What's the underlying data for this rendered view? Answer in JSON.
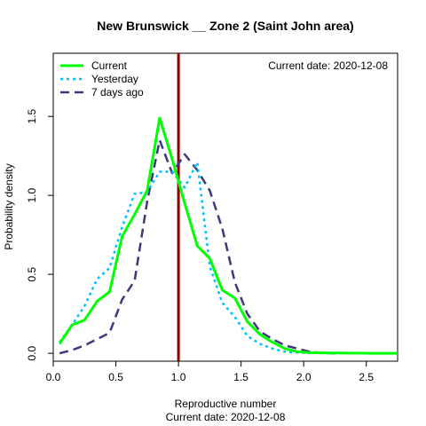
{
  "chart_data": {
    "type": "line",
    "title": "New Brunswick __ Zone 2 (Saint John area)",
    "xlabel": "Reproductive number",
    "ylabel": "Probability density",
    "subtitle": "Current date:  2020-12-08",
    "annotation": "Current date:  2020-12-08",
    "xlim": [
      0.0,
      2.75
    ],
    "ylim": [
      -0.05,
      1.9
    ],
    "x_ticks": [
      "0.0",
      "0.5",
      "1.0",
      "1.5",
      "2.0",
      "2.5"
    ],
    "y_ticks": [
      "0.0",
      "0.5",
      "1.0",
      "1.5"
    ],
    "legend_position": "top-left",
    "reference_line": {
      "x": 1.0,
      "color": "#8b0000"
    },
    "series": [
      {
        "name": "Current",
        "color": "#00ff00",
        "dash": "solid",
        "x": [
          0.05,
          0.15,
          0.25,
          0.35,
          0.45,
          0.55,
          0.65,
          0.75,
          0.85,
          0.95,
          1.05,
          1.15,
          1.25,
          1.35,
          1.45,
          1.55,
          1.65,
          1.75,
          1.85,
          1.95,
          2.05,
          2.15,
          2.25,
          2.35,
          2.45,
          2.55,
          2.65,
          2.75
        ],
        "y": [
          0.06,
          0.18,
          0.21,
          0.33,
          0.39,
          0.74,
          0.88,
          1.03,
          1.49,
          1.23,
          0.95,
          0.68,
          0.6,
          0.4,
          0.35,
          0.2,
          0.12,
          0.07,
          0.03,
          0.01,
          0.005,
          0.003,
          0.002,
          0.001,
          0.001,
          0.0,
          0.0,
          0.0
        ]
      },
      {
        "name": "Yesterday",
        "color": "#00bfff",
        "dash": "dotted",
        "x": [
          0.05,
          0.15,
          0.25,
          0.35,
          0.45,
          0.55,
          0.65,
          0.75,
          0.85,
          0.95,
          1.05,
          1.15,
          1.25,
          1.35,
          1.45,
          1.55,
          1.65,
          1.75,
          1.85,
          1.95,
          2.05,
          2.15,
          2.25
        ],
        "y": [
          0.07,
          0.18,
          0.3,
          0.47,
          0.54,
          0.8,
          1.01,
          1.02,
          1.15,
          1.15,
          1.05,
          1.21,
          0.55,
          0.32,
          0.23,
          0.11,
          0.06,
          0.03,
          0.01,
          0.005,
          0.002,
          0.001,
          0.0
        ]
      },
      {
        "name": "7 days ago",
        "color": "#3a3a7e",
        "dash": "dashed",
        "x": [
          0.05,
          0.15,
          0.25,
          0.35,
          0.45,
          0.55,
          0.65,
          0.75,
          0.85,
          0.95,
          1.05,
          1.15,
          1.25,
          1.35,
          1.45,
          1.55,
          1.65,
          1.75,
          1.85,
          1.95,
          2.05,
          2.15,
          2.25
        ],
        "y": [
          0.0,
          0.02,
          0.05,
          0.09,
          0.13,
          0.34,
          0.46,
          0.96,
          1.35,
          1.14,
          1.26,
          1.16,
          1.03,
          0.79,
          0.45,
          0.25,
          0.14,
          0.09,
          0.05,
          0.03,
          0.01,
          0.003,
          0.0
        ]
      }
    ]
  }
}
